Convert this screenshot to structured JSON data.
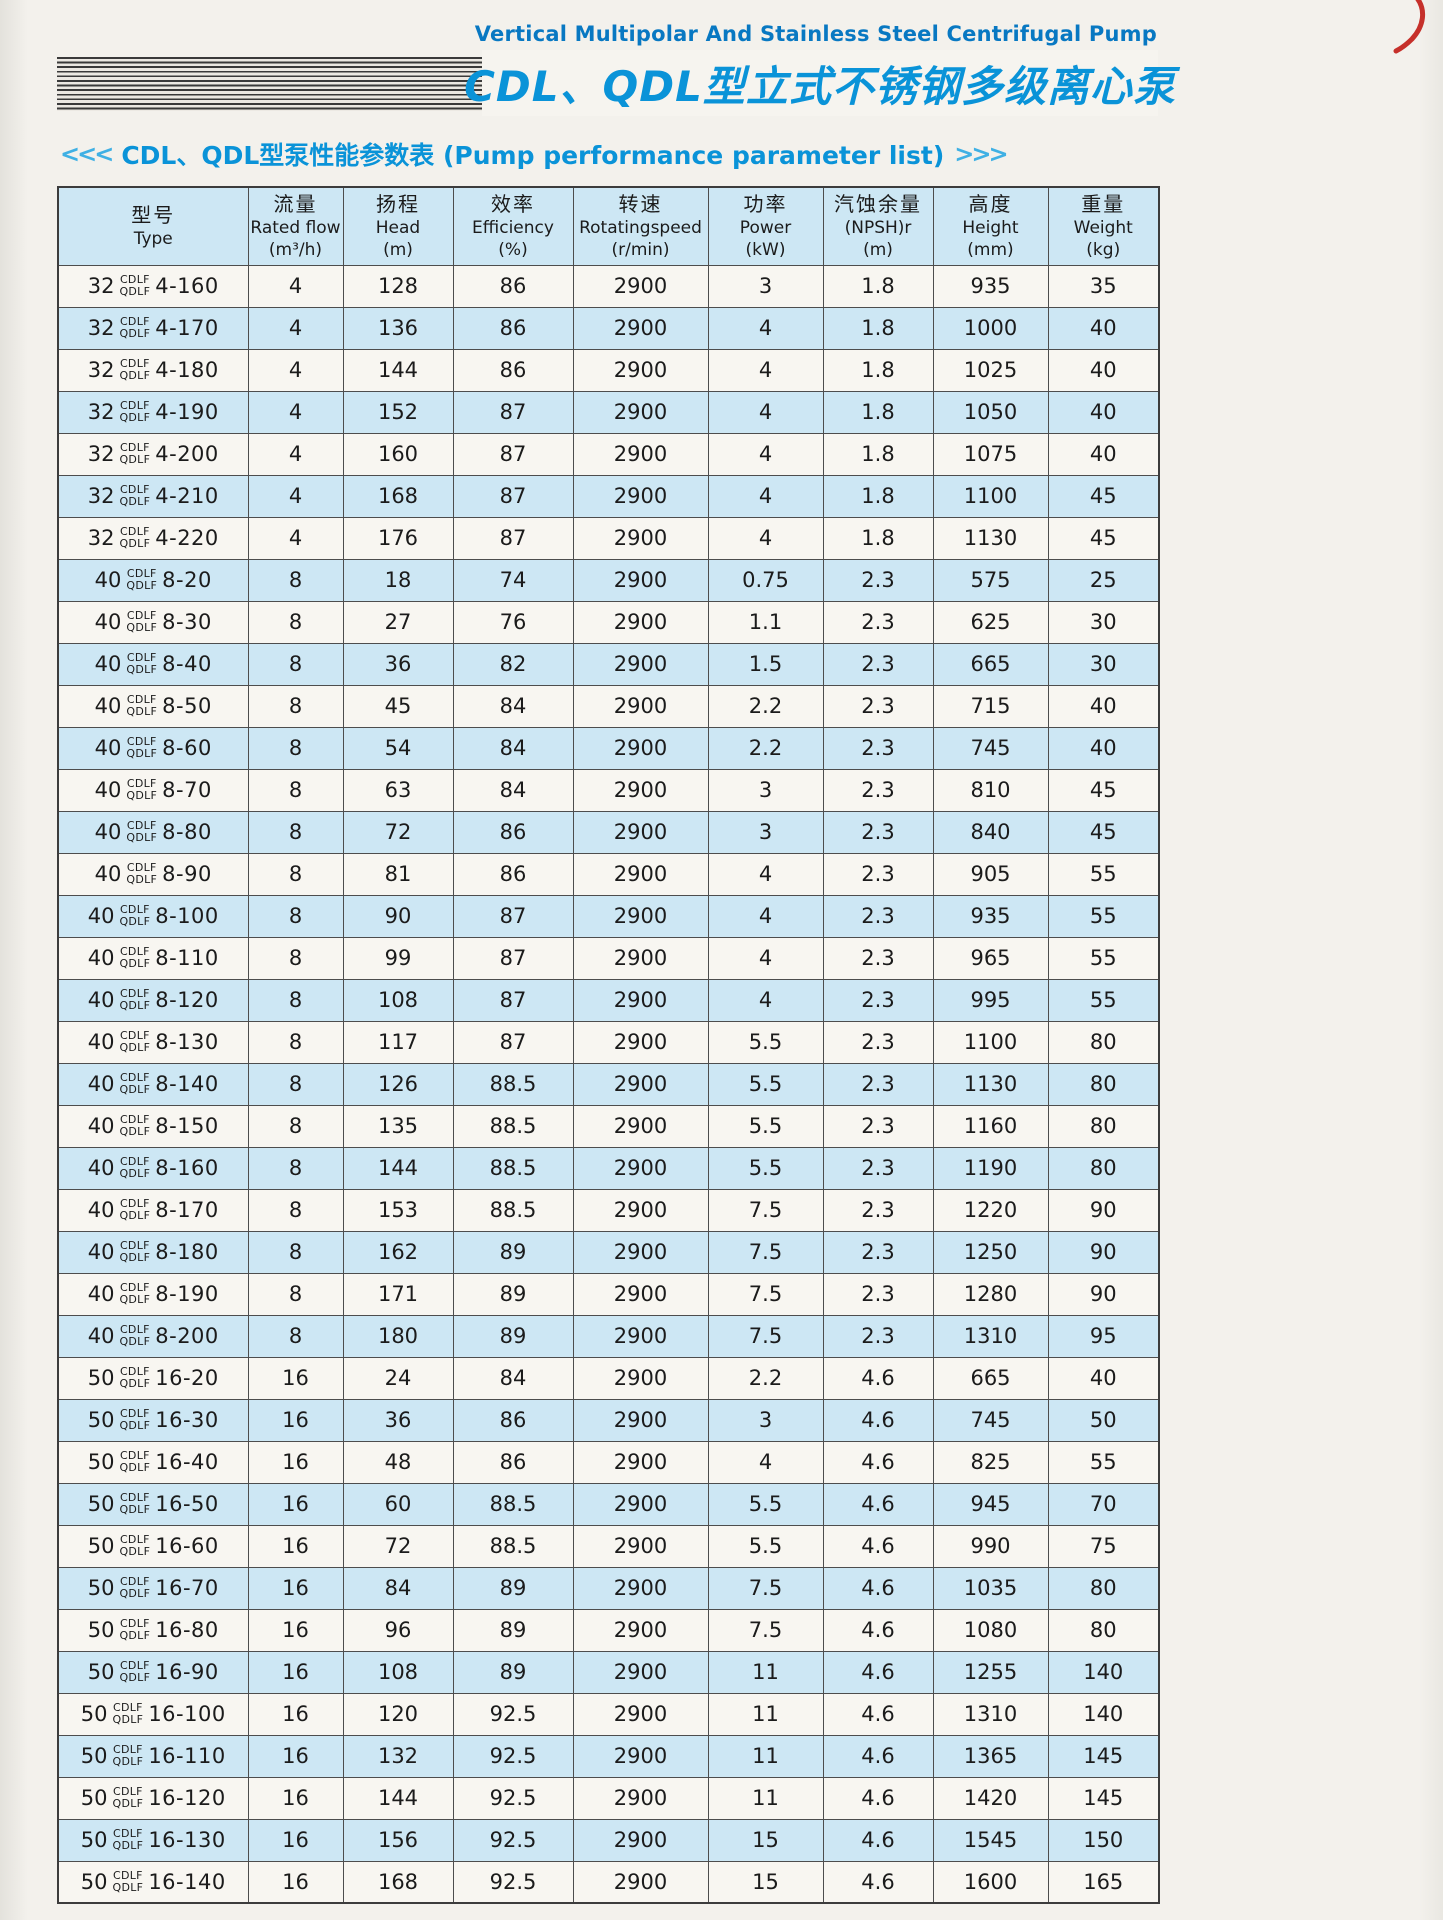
{
  "page": {
    "top_title_en": "Vertical Multipolar And Stainless Steel Centrifugal Pump",
    "main_title": "CDL、QDL型立式不锈钢多级离心泵",
    "section": {
      "left_arrows": "<<<",
      "title": "CDL、QDL型泵性能参数表 (Pump performance parameter list)",
      "right_arrows": ">>>"
    }
  },
  "colors": {
    "accent_blue": "#0a93d8",
    "row_blue": "#cde7f4",
    "paper": "#f3f1ec",
    "pen_mark_red": "#c11b15"
  },
  "table": {
    "type_stack": [
      "CDLF",
      "QDLF"
    ],
    "columns": [
      {
        "key": "type",
        "lines": [
          "型号",
          "Type"
        ]
      },
      {
        "key": "flow",
        "lines": [
          "流量",
          "Rated flow",
          "(m³/h)"
        ]
      },
      {
        "key": "head",
        "lines": [
          "扬程",
          "Head",
          "(m)"
        ]
      },
      {
        "key": "efficiency",
        "lines": [
          "效率",
          "Efficiency",
          "(%)"
        ]
      },
      {
        "key": "speed",
        "lines": [
          "转速",
          "Rotatingspeed",
          "(r/min)"
        ]
      },
      {
        "key": "power",
        "lines": [
          "功率",
          "Power",
          "(kW)"
        ]
      },
      {
        "key": "npsh",
        "lines": [
          "汽蚀余量",
          "(NPSH)r",
          "(m)"
        ]
      },
      {
        "key": "height",
        "lines": [
          "高度",
          "Height",
          "(mm)"
        ]
      },
      {
        "key": "weight",
        "lines": [
          "重量",
          "Weight",
          "(kg)"
        ]
      }
    ],
    "rows": [
      {
        "size": "32",
        "model": "4-160",
        "flow": "4",
        "head": "128",
        "eff": "86",
        "speed": "2900",
        "power": "3",
        "npsh": "1.8",
        "height": "935",
        "weight": "35"
      },
      {
        "size": "32",
        "model": "4-170",
        "flow": "4",
        "head": "136",
        "eff": "86",
        "speed": "2900",
        "power": "4",
        "npsh": "1.8",
        "height": "1000",
        "weight": "40"
      },
      {
        "size": "32",
        "model": "4-180",
        "flow": "4",
        "head": "144",
        "eff": "86",
        "speed": "2900",
        "power": "4",
        "npsh": "1.8",
        "height": "1025",
        "weight": "40"
      },
      {
        "size": "32",
        "model": "4-190",
        "flow": "4",
        "head": "152",
        "eff": "87",
        "speed": "2900",
        "power": "4",
        "npsh": "1.8",
        "height": "1050",
        "weight": "40"
      },
      {
        "size": "32",
        "model": "4-200",
        "flow": "4",
        "head": "160",
        "eff": "87",
        "speed": "2900",
        "power": "4",
        "npsh": "1.8",
        "height": "1075",
        "weight": "40"
      },
      {
        "size": "32",
        "model": "4-210",
        "flow": "4",
        "head": "168",
        "eff": "87",
        "speed": "2900",
        "power": "4",
        "npsh": "1.8",
        "height": "1100",
        "weight": "45"
      },
      {
        "size": "32",
        "model": "4-220",
        "flow": "4",
        "head": "176",
        "eff": "87",
        "speed": "2900",
        "power": "4",
        "npsh": "1.8",
        "height": "1130",
        "weight": "45"
      },
      {
        "size": "40",
        "model": "8-20",
        "flow": "8",
        "head": "18",
        "eff": "74",
        "speed": "2900",
        "power": "0.75",
        "npsh": "2.3",
        "height": "575",
        "weight": "25"
      },
      {
        "size": "40",
        "model": "8-30",
        "flow": "8",
        "head": "27",
        "eff": "76",
        "speed": "2900",
        "power": "1.1",
        "npsh": "2.3",
        "height": "625",
        "weight": "30"
      },
      {
        "size": "40",
        "model": "8-40",
        "flow": "8",
        "head": "36",
        "eff": "82",
        "speed": "2900",
        "power": "1.5",
        "npsh": "2.3",
        "height": "665",
        "weight": "30"
      },
      {
        "size": "40",
        "model": "8-50",
        "flow": "8",
        "head": "45",
        "eff": "84",
        "speed": "2900",
        "power": "2.2",
        "npsh": "2.3",
        "height": "715",
        "weight": "40"
      },
      {
        "size": "40",
        "model": "8-60",
        "flow": "8",
        "head": "54",
        "eff": "84",
        "speed": "2900",
        "power": "2.2",
        "npsh": "2.3",
        "height": "745",
        "weight": "40"
      },
      {
        "size": "40",
        "model": "8-70",
        "flow": "8",
        "head": "63",
        "eff": "84",
        "speed": "2900",
        "power": "3",
        "npsh": "2.3",
        "height": "810",
        "weight": "45"
      },
      {
        "size": "40",
        "model": "8-80",
        "flow": "8",
        "head": "72",
        "eff": "86",
        "speed": "2900",
        "power": "3",
        "npsh": "2.3",
        "height": "840",
        "weight": "45"
      },
      {
        "size": "40",
        "model": "8-90",
        "flow": "8",
        "head": "81",
        "eff": "86",
        "speed": "2900",
        "power": "4",
        "npsh": "2.3",
        "height": "905",
        "weight": "55"
      },
      {
        "size": "40",
        "model": "8-100",
        "flow": "8",
        "head": "90",
        "eff": "87",
        "speed": "2900",
        "power": "4",
        "npsh": "2.3",
        "height": "935",
        "weight": "55"
      },
      {
        "size": "40",
        "model": "8-110",
        "flow": "8",
        "head": "99",
        "eff": "87",
        "speed": "2900",
        "power": "4",
        "npsh": "2.3",
        "height": "965",
        "weight": "55"
      },
      {
        "size": "40",
        "model": "8-120",
        "flow": "8",
        "head": "108",
        "eff": "87",
        "speed": "2900",
        "power": "4",
        "npsh": "2.3",
        "height": "995",
        "weight": "55"
      },
      {
        "size": "40",
        "model": "8-130",
        "flow": "8",
        "head": "117",
        "eff": "87",
        "speed": "2900",
        "power": "5.5",
        "npsh": "2.3",
        "height": "1100",
        "weight": "80"
      },
      {
        "size": "40",
        "model": "8-140",
        "flow": "8",
        "head": "126",
        "eff": "88.5",
        "speed": "2900",
        "power": "5.5",
        "npsh": "2.3",
        "height": "1130",
        "weight": "80"
      },
      {
        "size": "40",
        "model": "8-150",
        "flow": "8",
        "head": "135",
        "eff": "88.5",
        "speed": "2900",
        "power": "5.5",
        "npsh": "2.3",
        "height": "1160",
        "weight": "80"
      },
      {
        "size": "40",
        "model": "8-160",
        "flow": "8",
        "head": "144",
        "eff": "88.5",
        "speed": "2900",
        "power": "5.5",
        "npsh": "2.3",
        "height": "1190",
        "weight": "80"
      },
      {
        "size": "40",
        "model": "8-170",
        "flow": "8",
        "head": "153",
        "eff": "88.5",
        "speed": "2900",
        "power": "7.5",
        "npsh": "2.3",
        "height": "1220",
        "weight": "90"
      },
      {
        "size": "40",
        "model": "8-180",
        "flow": "8",
        "head": "162",
        "eff": "89",
        "speed": "2900",
        "power": "7.5",
        "npsh": "2.3",
        "height": "1250",
        "weight": "90"
      },
      {
        "size": "40",
        "model": "8-190",
        "flow": "8",
        "head": "171",
        "eff": "89",
        "speed": "2900",
        "power": "7.5",
        "npsh": "2.3",
        "height": "1280",
        "weight": "90"
      },
      {
        "size": "40",
        "model": "8-200",
        "flow": "8",
        "head": "180",
        "eff": "89",
        "speed": "2900",
        "power": "7.5",
        "npsh": "2.3",
        "height": "1310",
        "weight": "95"
      },
      {
        "size": "50",
        "model": "16-20",
        "flow": "16",
        "head": "24",
        "eff": "84",
        "speed": "2900",
        "power": "2.2",
        "npsh": "4.6",
        "height": "665",
        "weight": "40"
      },
      {
        "size": "50",
        "model": "16-30",
        "flow": "16",
        "head": "36",
        "eff": "86",
        "speed": "2900",
        "power": "3",
        "npsh": "4.6",
        "height": "745",
        "weight": "50"
      },
      {
        "size": "50",
        "model": "16-40",
        "flow": "16",
        "head": "48",
        "eff": "86",
        "speed": "2900",
        "power": "4",
        "npsh": "4.6",
        "height": "825",
        "weight": "55"
      },
      {
        "size": "50",
        "model": "16-50",
        "flow": "16",
        "head": "60",
        "eff": "88.5",
        "speed": "2900",
        "power": "5.5",
        "npsh": "4.6",
        "height": "945",
        "weight": "70"
      },
      {
        "size": "50",
        "model": "16-60",
        "flow": "16",
        "head": "72",
        "eff": "88.5",
        "speed": "2900",
        "power": "5.5",
        "npsh": "4.6",
        "height": "990",
        "weight": "75"
      },
      {
        "size": "50",
        "model": "16-70",
        "flow": "16",
        "head": "84",
        "eff": "89",
        "speed": "2900",
        "power": "7.5",
        "npsh": "4.6",
        "height": "1035",
        "weight": "80"
      },
      {
        "size": "50",
        "model": "16-80",
        "flow": "16",
        "head": "96",
        "eff": "89",
        "speed": "2900",
        "power": "7.5",
        "npsh": "4.6",
        "height": "1080",
        "weight": "80"
      },
      {
        "size": "50",
        "model": "16-90",
        "flow": "16",
        "head": "108",
        "eff": "89",
        "speed": "2900",
        "power": "11",
        "npsh": "4.6",
        "height": "1255",
        "weight": "140"
      },
      {
        "size": "50",
        "model": "16-100",
        "flow": "16",
        "head": "120",
        "eff": "92.5",
        "speed": "2900",
        "power": "11",
        "npsh": "4.6",
        "height": "1310",
        "weight": "140"
      },
      {
        "size": "50",
        "model": "16-110",
        "flow": "16",
        "head": "132",
        "eff": "92.5",
        "speed": "2900",
        "power": "11",
        "npsh": "4.6",
        "height": "1365",
        "weight": "145"
      },
      {
        "size": "50",
        "model": "16-120",
        "flow": "16",
        "head": "144",
        "eff": "92.5",
        "speed": "2900",
        "power": "11",
        "npsh": "4.6",
        "height": "1420",
        "weight": "145"
      },
      {
        "size": "50",
        "model": "16-130",
        "flow": "16",
        "head": "156",
        "eff": "92.5",
        "speed": "2900",
        "power": "15",
        "npsh": "4.6",
        "height": "1545",
        "weight": "150"
      },
      {
        "size": "50",
        "model": "16-140",
        "flow": "16",
        "head": "168",
        "eff": "92.5",
        "speed": "2900",
        "power": "15",
        "npsh": "4.6",
        "height": "1600",
        "weight": "165"
      }
    ]
  }
}
